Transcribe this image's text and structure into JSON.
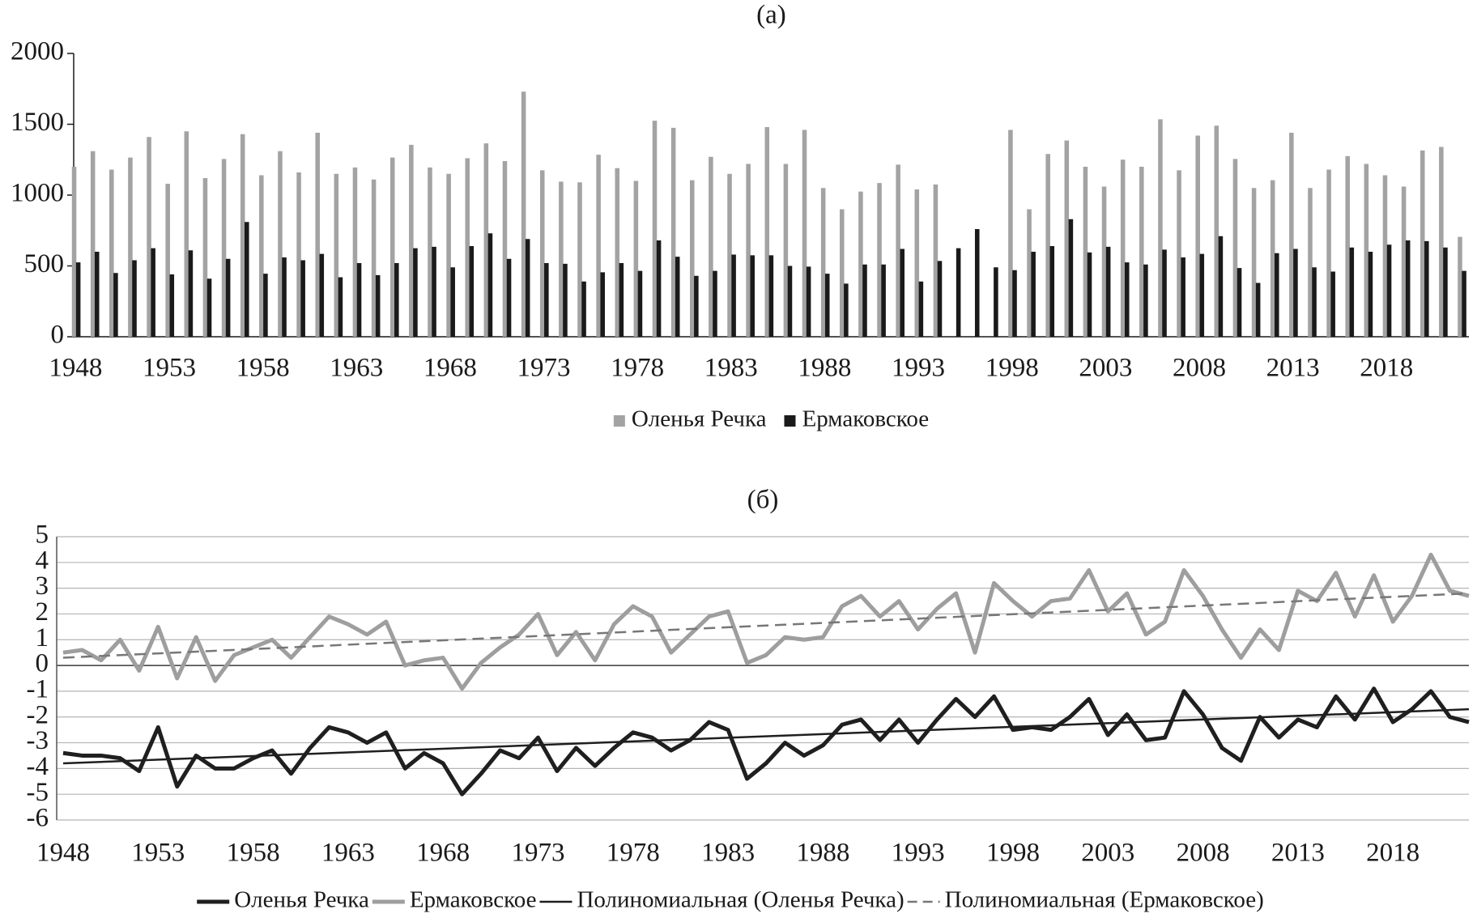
{
  "chart_data": [
    {
      "type": "bar",
      "title": "(а)",
      "x": [
        1948,
        1949,
        1950,
        1951,
        1952,
        1953,
        1954,
        1955,
        1956,
        1957,
        1958,
        1959,
        1960,
        1961,
        1962,
        1963,
        1964,
        1965,
        1966,
        1967,
        1968,
        1969,
        1970,
        1971,
        1972,
        1973,
        1974,
        1975,
        1976,
        1977,
        1978,
        1979,
        1980,
        1981,
        1982,
        1983,
        1984,
        1985,
        1986,
        1987,
        1988,
        1989,
        1990,
        1991,
        1992,
        1993,
        1994,
        1995,
        1996,
        1997,
        1998,
        1999,
        2000,
        2001,
        2002,
        2003,
        2004,
        2005,
        2006,
        2007,
        2008,
        2009,
        2010,
        2011,
        2012,
        2013,
        2014,
        2015,
        2016,
        2017,
        2018,
        2019,
        2020,
        2021,
        2022
      ],
      "xlim": [
        1947.9,
        2022.4
      ],
      "xticks": [
        1948,
        1953,
        1958,
        1963,
        1968,
        1973,
        1978,
        1983,
        1988,
        1993,
        1998,
        2003,
        2008,
        2013,
        2018
      ],
      "ylim": [
        0,
        2000
      ],
      "yticks": [
        0,
        500,
        1000,
        1500,
        2000
      ],
      "series": [
        {
          "name": "Оленья Речка",
          "color": "#a3a3a3",
          "values": [
            1200,
            1310,
            1180,
            1265,
            1410,
            1080,
            1450,
            1120,
            1255,
            1430,
            1140,
            1310,
            1160,
            1440,
            1150,
            1195,
            1110,
            1265,
            1355,
            1195,
            1150,
            1260,
            1365,
            1240,
            1730,
            1175,
            1095,
            1090,
            1285,
            1190,
            1100,
            1525,
            1475,
            1105,
            1270,
            1150,
            1220,
            1480,
            1220,
            1460,
            1050,
            900,
            1025,
            1085,
            1215,
            1040,
            1075,
            null,
            null,
            null,
            1460,
            900,
            1290,
            1385,
            1200,
            1060,
            1250,
            1200,
            1535,
            1175,
            1420,
            1490,
            1255,
            1050,
            1105,
            1440,
            1050,
            1180,
            1275,
            1220,
            1140,
            1060,
            1315,
            1340,
            705
          ]
        },
        {
          "name": "Ермаковское",
          "color": "#1a1a1a",
          "values": [
            525,
            600,
            450,
            540,
            625,
            440,
            610,
            410,
            550,
            810,
            445,
            560,
            540,
            585,
            420,
            520,
            435,
            520,
            625,
            635,
            490,
            640,
            730,
            550,
            690,
            520,
            515,
            390,
            455,
            520,
            465,
            680,
            565,
            430,
            465,
            580,
            575,
            575,
            500,
            495,
            445,
            375,
            510,
            510,
            620,
            390,
            535,
            625,
            760,
            490,
            470,
            600,
            640,
            830,
            595,
            635,
            525,
            510,
            615,
            560,
            585,
            710,
            485,
            380,
            590,
            620,
            490,
            460,
            630,
            600,
            650,
            680,
            675,
            630,
            465
          ]
        }
      ]
    },
    {
      "type": "line",
      "title": "(б)",
      "x": [
        1948,
        1949,
        1950,
        1951,
        1952,
        1953,
        1954,
        1955,
        1956,
        1957,
        1958,
        1959,
        1960,
        1961,
        1962,
        1963,
        1964,
        1965,
        1966,
        1967,
        1968,
        1969,
        1970,
        1971,
        1972,
        1973,
        1974,
        1975,
        1976,
        1977,
        1978,
        1979,
        1980,
        1981,
        1982,
        1983,
        1984,
        1985,
        1986,
        1987,
        1988,
        1989,
        1990,
        1991,
        1992,
        1993,
        1994,
        1995,
        1996,
        1997,
        1998,
        1999,
        2000,
        2001,
        2002,
        2003,
        2004,
        2005,
        2006,
        2007,
        2008,
        2009,
        2010,
        2011,
        2012,
        2013,
        2014,
        2015,
        2016,
        2017,
        2018,
        2019,
        2020,
        2021,
        2022
      ],
      "xlim": [
        1947.66,
        2022
      ],
      "xticks": [
        1948,
        1953,
        1958,
        1963,
        1968,
        1973,
        1978,
        1983,
        1988,
        1993,
        1998,
        2003,
        2008,
        2013,
        2018
      ],
      "ylim": [
        -6,
        5
      ],
      "yticks": [
        -6,
        -5,
        -4,
        -3,
        -2,
        -1,
        0,
        1,
        2,
        3,
        4,
        5
      ],
      "grid": true,
      "series": [
        {
          "name": "Оленья Речка",
          "color": "#1f1f1f",
          "line_width": 5,
          "style": "solid",
          "values": [
            -3.4,
            -3.5,
            -3.5,
            -3.6,
            -4.1,
            -2.4,
            -4.7,
            -3.5,
            -4.0,
            -4.0,
            -3.6,
            -3.3,
            -4.2,
            -3.2,
            -2.4,
            -2.6,
            -3.0,
            -2.6,
            -4.0,
            -3.4,
            -3.8,
            -5.0,
            -4.2,
            -3.3,
            -3.6,
            -2.8,
            -4.1,
            -3.2,
            -3.9,
            -3.2,
            -2.6,
            -2.8,
            -3.3,
            -2.9,
            -2.2,
            -2.5,
            -4.4,
            -3.8,
            -3.0,
            -3.5,
            -3.1,
            -2.3,
            -2.1,
            -2.9,
            -2.1,
            -3.0,
            -2.1,
            -1.3,
            -2.0,
            -1.2,
            -2.5,
            -2.4,
            -2.5,
            -2.0,
            -1.3,
            -2.7,
            -1.9,
            -2.9,
            -2.8,
            -1.0,
            -1.9,
            -3.2,
            -3.7,
            -2.0,
            -2.8,
            -2.1,
            -2.4,
            -1.2,
            -2.1,
            -0.9,
            -2.2,
            -1.7,
            -1.0,
            -2.0,
            -2.2
          ]
        },
        {
          "name": "Ермаковское",
          "color": "#9e9e9e",
          "line_width": 5,
          "style": "solid",
          "values": [
            0.5,
            0.6,
            0.2,
            1.0,
            -0.2,
            1.5,
            -0.5,
            1.1,
            -0.6,
            0.4,
            0.7,
            1.0,
            0.3,
            1.1,
            1.9,
            1.6,
            1.2,
            1.7,
            0.0,
            0.2,
            0.3,
            -0.9,
            0.1,
            0.7,
            1.2,
            2.0,
            0.4,
            1.3,
            0.2,
            1.6,
            2.3,
            1.9,
            0.5,
            1.2,
            1.9,
            2.1,
            0.1,
            0.4,
            1.1,
            1.0,
            1.1,
            2.3,
            2.7,
            1.9,
            2.5,
            1.4,
            2.2,
            2.8,
            0.5,
            3.2,
            2.5,
            1.9,
            2.5,
            2.6,
            3.7,
            2.1,
            2.8,
            1.2,
            1.7,
            3.7,
            2.7,
            1.4,
            0.3,
            1.4,
            0.6,
            2.9,
            2.5,
            3.6,
            1.9,
            3.5,
            1.7,
            2.7,
            4.3,
            2.9,
            2.7
          ]
        },
        {
          "name": "Полиномиальная (Оленья Речка)",
          "color": "#1f1f1f",
          "line_width": 2.5,
          "style": "solid",
          "x": [
            1948,
            2022
          ],
          "values": [
            -3.8,
            -1.7
          ]
        },
        {
          "name": "Полиномиальная (Ермаковское)",
          "color": "#777777",
          "line_width": 2.5,
          "style": "dashed",
          "x": [
            1948,
            2022
          ],
          "values": [
            0.3,
            2.8
          ]
        }
      ]
    }
  ]
}
